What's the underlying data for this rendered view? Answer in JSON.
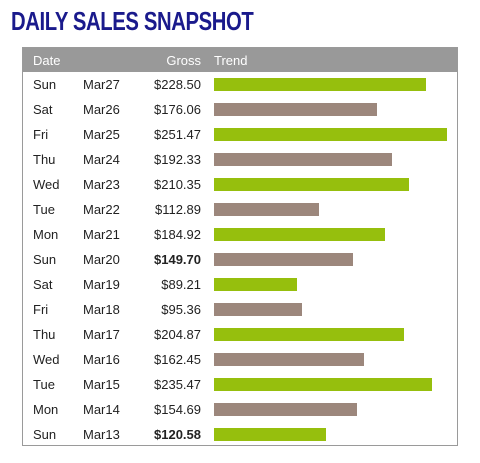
{
  "title": "DAILY SALES SNAPSHOT",
  "colors": {
    "up": "#96bf0d",
    "down": "#9c877c",
    "header_bg": "#999999",
    "title": "#1a1a8c"
  },
  "chart_data": {
    "type": "bar",
    "orientation": "horizontal",
    "title": "DAILY SALES SNAPSHOT",
    "columns": [
      "Date",
      "Gross",
      "Trend"
    ],
    "rows": [
      {
        "day": "Sun",
        "date": "Mar27",
        "gross_label": "$228.50",
        "value": 228.5,
        "trend": "up",
        "bold": false
      },
      {
        "day": "Sat",
        "date": "Mar26",
        "gross_label": "$176.06",
        "value": 176.06,
        "trend": "down",
        "bold": false
      },
      {
        "day": "Fri",
        "date": "Mar25",
        "gross_label": "$251.47",
        "value": 251.47,
        "trend": "up",
        "bold": false
      },
      {
        "day": "Thu",
        "date": "Mar24",
        "gross_label": "$192.33",
        "value": 192.33,
        "trend": "down",
        "bold": false
      },
      {
        "day": "Wed",
        "date": "Mar23",
        "gross_label": "$210.35",
        "value": 210.35,
        "trend": "up",
        "bold": false
      },
      {
        "day": "Tue",
        "date": "Mar22",
        "gross_label": "$112.89",
        "value": 112.89,
        "trend": "down",
        "bold": false
      },
      {
        "day": "Mon",
        "date": "Mar21",
        "gross_label": "$184.92",
        "value": 184.92,
        "trend": "up",
        "bold": false
      },
      {
        "day": "Sun",
        "date": "Mar20",
        "gross_label": "$149.70",
        "value": 149.7,
        "trend": "down",
        "bold": true
      },
      {
        "day": "Sat",
        "date": "Mar19",
        "gross_label": "$89.21",
        "value": 89.21,
        "trend": "up",
        "bold": false
      },
      {
        "day": "Fri",
        "date": "Mar18",
        "gross_label": "$95.36",
        "value": 95.36,
        "trend": "down",
        "bold": false
      },
      {
        "day": "Thu",
        "date": "Mar17",
        "gross_label": "$204.87",
        "value": 204.87,
        "trend": "up",
        "bold": false
      },
      {
        "day": "Wed",
        "date": "Mar16",
        "gross_label": "$162.45",
        "value": 162.45,
        "trend": "down",
        "bold": false
      },
      {
        "day": "Tue",
        "date": "Mar15",
        "gross_label": "$235.47",
        "value": 235.47,
        "trend": "up",
        "bold": false
      },
      {
        "day": "Mon",
        "date": "Mar14",
        "gross_label": "$154.69",
        "value": 154.69,
        "trend": "down",
        "bold": false
      },
      {
        "day": "Sun",
        "date": "Mar13",
        "gross_label": "$120.58",
        "value": 120.58,
        "trend": "up",
        "bold": true
      }
    ]
  }
}
